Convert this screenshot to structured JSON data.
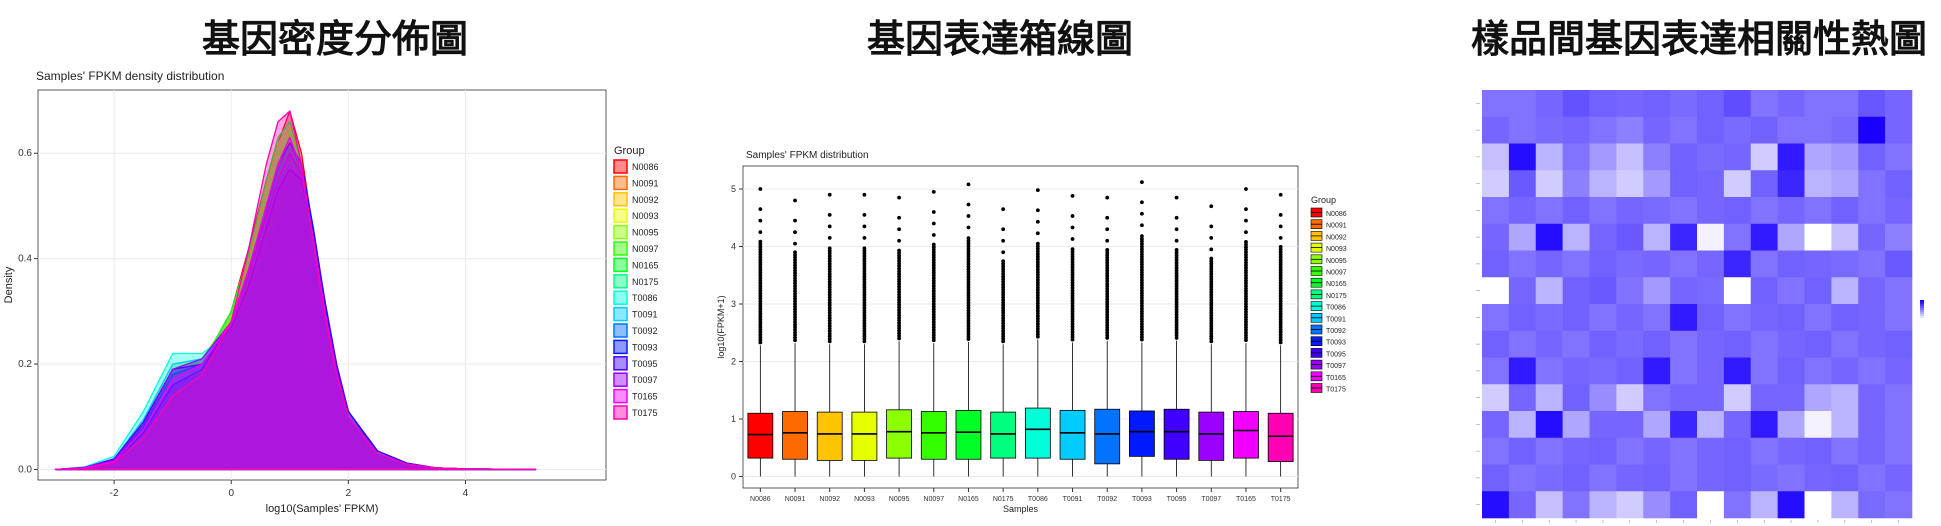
{
  "titles": {
    "density": "基因密度分佈圖",
    "boxplot": "基因表達箱線圖",
    "heatmap": "樣品間基因表達相關性熱圖"
  },
  "chart_data": [
    {
      "type": "area",
      "title": "Samples' FPKM density distribution",
      "xlabel": "log10(Samples' FPKM)",
      "ylabel": "Density",
      "xlim": [
        -3.3,
        6.4
      ],
      "ylim": [
        -0.02,
        0.72
      ],
      "xticks": [
        -2,
        0,
        2,
        4
      ],
      "yticks": [
        0.0,
        0.2,
        0.4,
        0.6
      ],
      "ytick_labels": [
        "0.0",
        "0.2",
        "0.4",
        "0.6"
      ],
      "grid": true,
      "legend_title": "Group",
      "legend_position": "right",
      "groups": [
        "N0086",
        "N0091",
        "N0092",
        "N0093",
        "N0095",
        "N0097",
        "N0165",
        "N0175",
        "T0086",
        "T0091",
        "T0092",
        "T0093",
        "T0095",
        "T0097",
        "T0165",
        "T0175"
      ],
      "colors": [
        "#FF0000",
        "#FF6A00",
        "#FFC400",
        "#E6FF00",
        "#8CFF00",
        "#33FF00",
        "#00FF26",
        "#00FF80",
        "#00FFD9",
        "#00CCFF",
        "#0073FF",
        "#001AFF",
        "#4000FF",
        "#9900FF",
        "#F200FF",
        "#FF00B3"
      ],
      "x": [
        -3.0,
        -2.5,
        -2.0,
        -1.5,
        -1.0,
        -0.5,
        0.0,
        0.3,
        0.6,
        0.8,
        1.0,
        1.2,
        1.4,
        1.6,
        1.8,
        2.0,
        2.5,
        3.0,
        3.5,
        4.0,
        5.2
      ],
      "series": [
        {
          "values": [
            0.0,
            0.002,
            0.012,
            0.06,
            0.15,
            0.2,
            0.3,
            0.42,
            0.55,
            0.62,
            0.68,
            0.6,
            0.45,
            0.3,
            0.18,
            0.1,
            0.03,
            0.01,
            0.003,
            0.001,
            0.0
          ]
        },
        {
          "values": [
            0.0,
            0.003,
            0.015,
            0.075,
            0.18,
            0.21,
            0.28,
            0.37,
            0.48,
            0.56,
            0.6,
            0.55,
            0.42,
            0.29,
            0.18,
            0.1,
            0.03,
            0.01,
            0.003,
            0.001,
            0.0
          ]
        },
        {
          "values": [
            0.0,
            0.002,
            0.01,
            0.05,
            0.13,
            0.19,
            0.29,
            0.4,
            0.54,
            0.62,
            0.65,
            0.58,
            0.45,
            0.31,
            0.19,
            0.1,
            0.03,
            0.01,
            0.003,
            0.001,
            0.0
          ]
        },
        {
          "values": [
            0.0,
            0.004,
            0.02,
            0.09,
            0.2,
            0.21,
            0.27,
            0.35,
            0.45,
            0.52,
            0.56,
            0.53,
            0.42,
            0.29,
            0.18,
            0.1,
            0.03,
            0.01,
            0.003,
            0.001,
            0.0
          ]
        },
        {
          "values": [
            0.0,
            0.003,
            0.014,
            0.07,
            0.17,
            0.21,
            0.29,
            0.39,
            0.52,
            0.6,
            0.64,
            0.58,
            0.44,
            0.3,
            0.18,
            0.1,
            0.03,
            0.01,
            0.003,
            0.001,
            0.0
          ]
        },
        {
          "values": [
            0.0,
            0.003,
            0.016,
            0.08,
            0.19,
            0.21,
            0.28,
            0.38,
            0.5,
            0.58,
            0.62,
            0.56,
            0.43,
            0.29,
            0.18,
            0.1,
            0.03,
            0.01,
            0.003,
            0.001,
            0.0
          ]
        },
        {
          "values": [
            0.0,
            0.002,
            0.012,
            0.06,
            0.15,
            0.2,
            0.3,
            0.41,
            0.55,
            0.63,
            0.66,
            0.58,
            0.44,
            0.3,
            0.18,
            0.1,
            0.03,
            0.01,
            0.003,
            0.001,
            0.0
          ]
        },
        {
          "values": [
            0.0,
            0.004,
            0.018,
            0.085,
            0.19,
            0.2,
            0.26,
            0.36,
            0.48,
            0.56,
            0.6,
            0.56,
            0.44,
            0.3,
            0.18,
            0.1,
            0.03,
            0.01,
            0.003,
            0.001,
            0.0
          ]
        },
        {
          "values": [
            0.0,
            0.005,
            0.025,
            0.11,
            0.22,
            0.22,
            0.26,
            0.33,
            0.42,
            0.48,
            0.52,
            0.5,
            0.41,
            0.29,
            0.18,
            0.1,
            0.03,
            0.01,
            0.003,
            0.001,
            0.0
          ]
        },
        {
          "values": [
            0.0,
            0.004,
            0.02,
            0.095,
            0.2,
            0.21,
            0.27,
            0.35,
            0.46,
            0.54,
            0.58,
            0.55,
            0.43,
            0.3,
            0.19,
            0.1,
            0.03,
            0.01,
            0.003,
            0.001,
            0.0
          ]
        },
        {
          "values": [
            0.0,
            0.003,
            0.016,
            0.08,
            0.18,
            0.2,
            0.28,
            0.37,
            0.49,
            0.57,
            0.62,
            0.57,
            0.45,
            0.31,
            0.19,
            0.11,
            0.03,
            0.01,
            0.003,
            0.001,
            0.0
          ]
        },
        {
          "values": [
            0.0,
            0.003,
            0.014,
            0.07,
            0.16,
            0.19,
            0.28,
            0.38,
            0.5,
            0.58,
            0.62,
            0.58,
            0.46,
            0.32,
            0.2,
            0.11,
            0.035,
            0.012,
            0.003,
            0.001,
            0.0
          ]
        },
        {
          "values": [
            0.0,
            0.004,
            0.02,
            0.09,
            0.19,
            0.2,
            0.27,
            0.35,
            0.46,
            0.53,
            0.57,
            0.55,
            0.45,
            0.32,
            0.2,
            0.11,
            0.035,
            0.012,
            0.003,
            0.001,
            0.0
          ]
        },
        {
          "values": [
            0.0,
            0.004,
            0.018,
            0.085,
            0.19,
            0.21,
            0.28,
            0.37,
            0.48,
            0.55,
            0.6,
            0.56,
            0.44,
            0.3,
            0.19,
            0.1,
            0.03,
            0.01,
            0.003,
            0.001,
            0.0
          ]
        },
        {
          "values": [
            0.0,
            0.003,
            0.015,
            0.075,
            0.17,
            0.2,
            0.28,
            0.38,
            0.5,
            0.58,
            0.63,
            0.57,
            0.44,
            0.3,
            0.18,
            0.1,
            0.03,
            0.01,
            0.003,
            0.001,
            0.0
          ]
        },
        {
          "values": [
            0.0,
            0.002,
            0.012,
            0.06,
            0.14,
            0.18,
            0.28,
            0.42,
            0.58,
            0.66,
            0.68,
            0.58,
            0.43,
            0.29,
            0.18,
            0.1,
            0.03,
            0.01,
            0.003,
            0.001,
            0.0
          ]
        }
      ]
    },
    {
      "type": "box",
      "title": "Samples' FPKM distribution",
      "xlabel": "Samples",
      "ylabel": "log10(FPKM+1)",
      "ylim": [
        -0.2,
        5.4
      ],
      "yticks": [
        0,
        1,
        2,
        3,
        4,
        5
      ],
      "grid": true,
      "legend_title": "Group",
      "legend_position": "right",
      "categories": [
        "N0086",
        "N0091",
        "N0092",
        "N0093",
        "N0095",
        "N0097",
        "N0165",
        "N0175",
        "T0086",
        "T0091",
        "T0092",
        "T0093",
        "T0095",
        "T0097",
        "T0165",
        "T0175"
      ],
      "colors": [
        "#FF0000",
        "#FF6A00",
        "#FFC400",
        "#E6FF00",
        "#8CFF00",
        "#33FF00",
        "#00FF26",
        "#00FF80",
        "#00FFD9",
        "#00CCFF",
        "#0073FF",
        "#001AFF",
        "#4000FF",
        "#9900FF",
        "#F200FF",
        "#FF00B3"
      ],
      "q1": [
        0.32,
        0.3,
        0.28,
        0.28,
        0.32,
        0.3,
        0.3,
        0.32,
        0.32,
        0.3,
        0.22,
        0.35,
        0.3,
        0.28,
        0.32,
        0.26
      ],
      "median": [
        0.73,
        0.76,
        0.74,
        0.74,
        0.78,
        0.76,
        0.77,
        0.74,
        0.82,
        0.76,
        0.74,
        0.78,
        0.78,
        0.74,
        0.8,
        0.7
      ],
      "q3": [
        1.1,
        1.13,
        1.12,
        1.12,
        1.16,
        1.13,
        1.15,
        1.12,
        1.19,
        1.15,
        1.17,
        1.14,
        1.17,
        1.12,
        1.13,
        1.1
      ],
      "whisker_low": [
        0,
        0,
        0,
        0,
        0,
        0,
        0,
        0,
        0,
        0,
        0,
        0,
        0,
        0,
        0,
        0
      ],
      "whisker_high": [
        2.28,
        2.32,
        2.3,
        2.3,
        2.35,
        2.32,
        2.34,
        2.3,
        2.38,
        2.33,
        2.36,
        2.33,
        2.36,
        2.3,
        2.32,
        2.28
      ],
      "max_outlier": [
        5.0,
        4.8,
        4.9,
        4.9,
        4.85,
        4.95,
        5.08,
        4.65,
        4.98,
        4.88,
        4.85,
        5.12,
        4.85,
        4.7,
        5.0,
        4.9
      ]
    },
    {
      "type": "heatmap",
      "rows": 16,
      "cols": 16,
      "color_low": "#FFFFFF",
      "color_high": "#1A00FF",
      "values": [
        [
          0.55,
          0.55,
          0.6,
          0.68,
          0.62,
          0.6,
          0.62,
          0.58,
          0.62,
          0.7,
          0.55,
          0.6,
          0.55,
          0.55,
          0.66,
          0.6
        ],
        [
          0.6,
          0.55,
          0.58,
          0.6,
          0.55,
          0.5,
          0.6,
          0.55,
          0.62,
          0.58,
          0.62,
          0.55,
          0.55,
          0.58,
          1.0,
          0.6
        ],
        [
          0.25,
          0.95,
          0.3,
          0.55,
          0.4,
          0.25,
          0.5,
          0.62,
          0.58,
          0.6,
          0.2,
          0.9,
          0.35,
          0.4,
          0.62,
          0.55
        ],
        [
          0.2,
          0.65,
          0.2,
          0.5,
          0.3,
          0.2,
          0.4,
          0.62,
          0.6,
          0.2,
          0.62,
          0.85,
          0.3,
          0.35,
          0.55,
          0.62
        ],
        [
          0.55,
          0.6,
          0.55,
          0.62,
          0.55,
          0.6,
          0.58,
          0.55,
          0.6,
          0.62,
          0.55,
          0.6,
          0.55,
          0.62,
          0.55,
          0.6
        ],
        [
          0.6,
          0.35,
          0.95,
          0.3,
          0.6,
          0.65,
          0.3,
          0.85,
          0.05,
          0.55,
          0.9,
          0.35,
          0.0,
          0.25,
          0.6,
          0.5
        ],
        [
          0.62,
          0.55,
          0.6,
          0.55,
          0.62,
          0.58,
          0.6,
          0.55,
          0.6,
          0.85,
          0.55,
          0.62,
          0.6,
          0.58,
          0.55,
          0.65
        ],
        [
          0.0,
          0.6,
          0.3,
          0.62,
          0.65,
          0.55,
          0.4,
          0.6,
          0.58,
          0.0,
          0.62,
          0.55,
          0.62,
          0.3,
          0.6,
          0.55
        ],
        [
          0.55,
          0.62,
          0.58,
          0.62,
          0.55,
          0.6,
          0.55,
          0.9,
          0.62,
          0.55,
          0.6,
          0.62,
          0.55,
          0.62,
          0.6,
          0.55
        ],
        [
          0.62,
          0.55,
          0.6,
          0.55,
          0.62,
          0.58,
          0.62,
          0.55,
          0.6,
          0.62,
          0.55,
          0.6,
          0.62,
          0.55,
          0.6,
          0.62
        ],
        [
          0.55,
          0.9,
          0.55,
          0.6,
          0.58,
          0.62,
          0.9,
          0.55,
          0.6,
          0.9,
          0.55,
          0.62,
          0.55,
          0.6,
          0.55,
          0.6
        ],
        [
          0.2,
          0.6,
          0.3,
          0.62,
          0.45,
          0.2,
          0.55,
          0.6,
          0.6,
          0.2,
          0.6,
          0.6,
          0.35,
          0.3,
          0.6,
          0.55
        ],
        [
          0.6,
          0.3,
          0.95,
          0.35,
          0.6,
          0.6,
          0.35,
          0.85,
          0.3,
          0.6,
          0.9,
          0.35,
          0.05,
          0.3,
          0.6,
          0.55
        ],
        [
          0.55,
          0.62,
          0.55,
          0.6,
          0.62,
          0.55,
          0.6,
          0.55,
          0.6,
          0.62,
          0.55,
          0.6,
          0.62,
          0.55,
          0.6,
          0.55
        ],
        [
          0.62,
          0.55,
          0.58,
          0.62,
          0.55,
          0.6,
          0.62,
          0.55,
          0.6,
          0.62,
          0.58,
          0.55,
          0.6,
          0.62,
          0.55,
          0.6
        ],
        [
          0.95,
          0.6,
          0.25,
          0.55,
          0.3,
          0.2,
          0.45,
          0.62,
          0.0,
          0.55,
          0.3,
          0.95,
          0.0,
          0.3,
          0.58,
          0.55
        ]
      ]
    }
  ]
}
